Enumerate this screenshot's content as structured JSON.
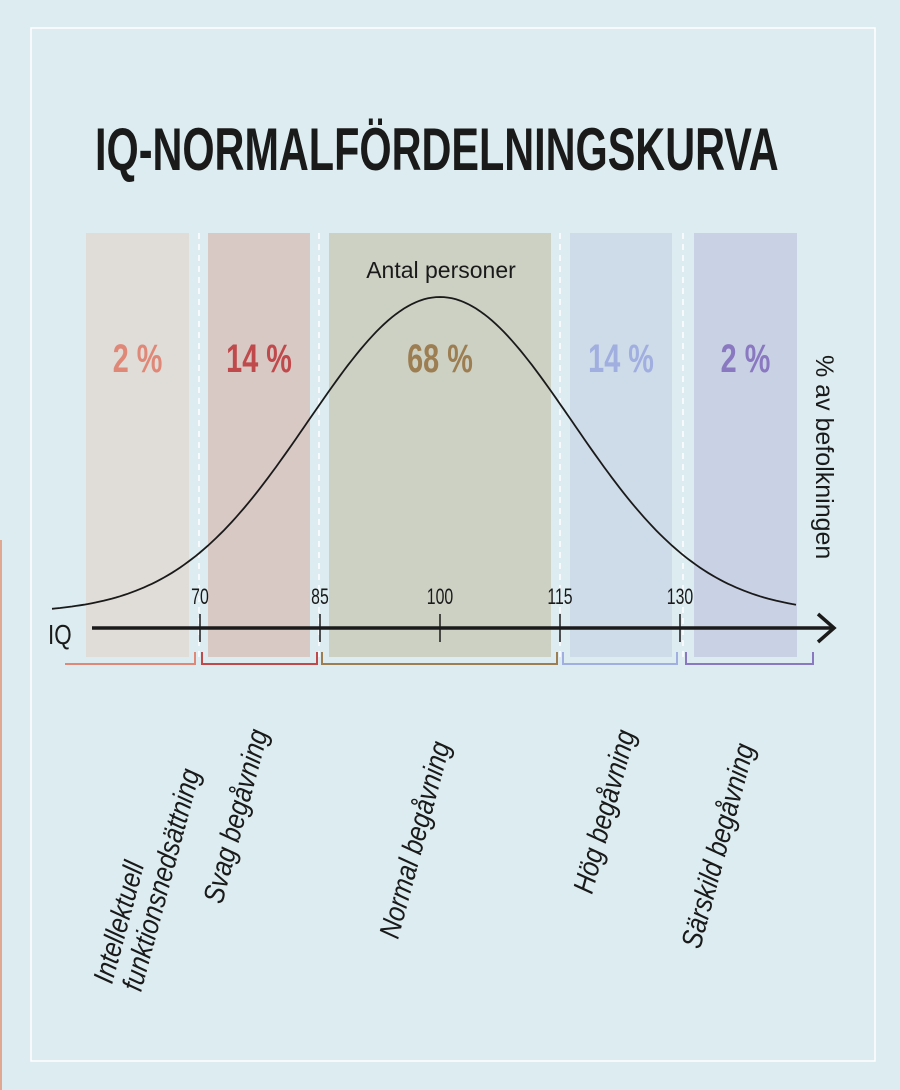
{
  "chart_data": {
    "type": "area",
    "title": "IQ-NORMALFÖRDELNINGSKURVA",
    "curve_label": "Antal personer",
    "xlabel": "IQ",
    "ylabel": "% av befolkningen",
    "distribution": {
      "mean": 100,
      "sd": 15
    },
    "xlim": [
      53,
      145
    ],
    "x_ticks": [
      70,
      85,
      100,
      115,
      130
    ],
    "x_tick_labels": [
      "70",
      "85",
      "100",
      "115",
      "130"
    ],
    "grid": false,
    "bands": [
      {
        "from": 53,
        "to": 70,
        "percent": 2,
        "percent_label": "2 %",
        "label_lines": [
          "Intellektuell",
          "funktionsnedsättning"
        ],
        "fill": "#e0dcd8",
        "accent": "#e08878"
      },
      {
        "from": 70,
        "to": 85,
        "percent": 14,
        "percent_label": "14 %",
        "label_lines": [
          "Svag begåvning"
        ],
        "fill": "#d8c9c5",
        "accent": "#c0494c"
      },
      {
        "from": 85,
        "to": 115,
        "percent": 68,
        "percent_label": "68 %",
        "label_lines": [
          "Normal begåvning"
        ],
        "fill": "#cdd1c4",
        "accent": "#9c7e52"
      },
      {
        "from": 115,
        "to": 130,
        "percent": 14,
        "percent_label": "14 %",
        "label_lines": [
          "Hög begåvning"
        ],
        "fill": "#cedbe8",
        "accent": "#a0aee0"
      },
      {
        "from": 130,
        "to": 145,
        "percent": 2,
        "percent_label": "2 %",
        "label_lines": [
          "Särskild begåvning"
        ],
        "fill": "#c9d1e4",
        "accent": "#8a78c0"
      }
    ]
  },
  "colors": {
    "background": "#dcecf0",
    "frame": "#ffffff",
    "ink": "#1a1a1a"
  }
}
